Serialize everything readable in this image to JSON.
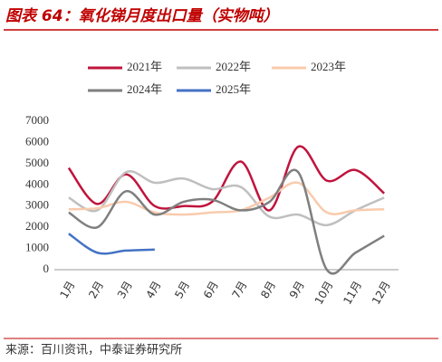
{
  "chart_data": {
    "type": "line",
    "title": "图表 64：氧化锑月度出口量（实物吨）",
    "source": "来源：百川资讯，中泰证券研究所",
    "categories": [
      "1月",
      "2月",
      "3月",
      "4月",
      "5月",
      "6月",
      "7月",
      "8月",
      "9月",
      "10月",
      "11月",
      "12月"
    ],
    "series": [
      {
        "name": "2021年",
        "color": "#c0143c",
        "values": [
          4800,
          3100,
          4500,
          3000,
          3000,
          3200,
          5100,
          2800,
          5800,
          4200,
          4700,
          3600
        ]
      },
      {
        "name": "2022年",
        "color": "#bfbfbf",
        "values": [
          3400,
          2800,
          4600,
          4100,
          4300,
          3800,
          3900,
          2500,
          2600,
          2100,
          2800,
          3400
        ]
      },
      {
        "name": "2023年",
        "color": "#f8cbad",
        "values": [
          2850,
          2900,
          3200,
          2700,
          2600,
          2700,
          2800,
          3400,
          4100,
          2700,
          2800,
          2850
        ]
      },
      {
        "name": "2024年",
        "color": "#7f7f7f",
        "values": [
          2700,
          2000,
          3700,
          2600,
          3200,
          3300,
          2800,
          3200,
          4600,
          0,
          800,
          1600
        ]
      },
      {
        "name": "2025年",
        "color": "#4472c4",
        "values": [
          1700,
          800,
          900,
          950,
          null,
          null,
          null,
          null,
          null,
          null,
          null,
          null
        ]
      }
    ],
    "ylim": [
      0,
      7000
    ],
    "yticks": [
      0,
      1000,
      2000,
      3000,
      4000,
      5000,
      6000,
      7000
    ]
  }
}
